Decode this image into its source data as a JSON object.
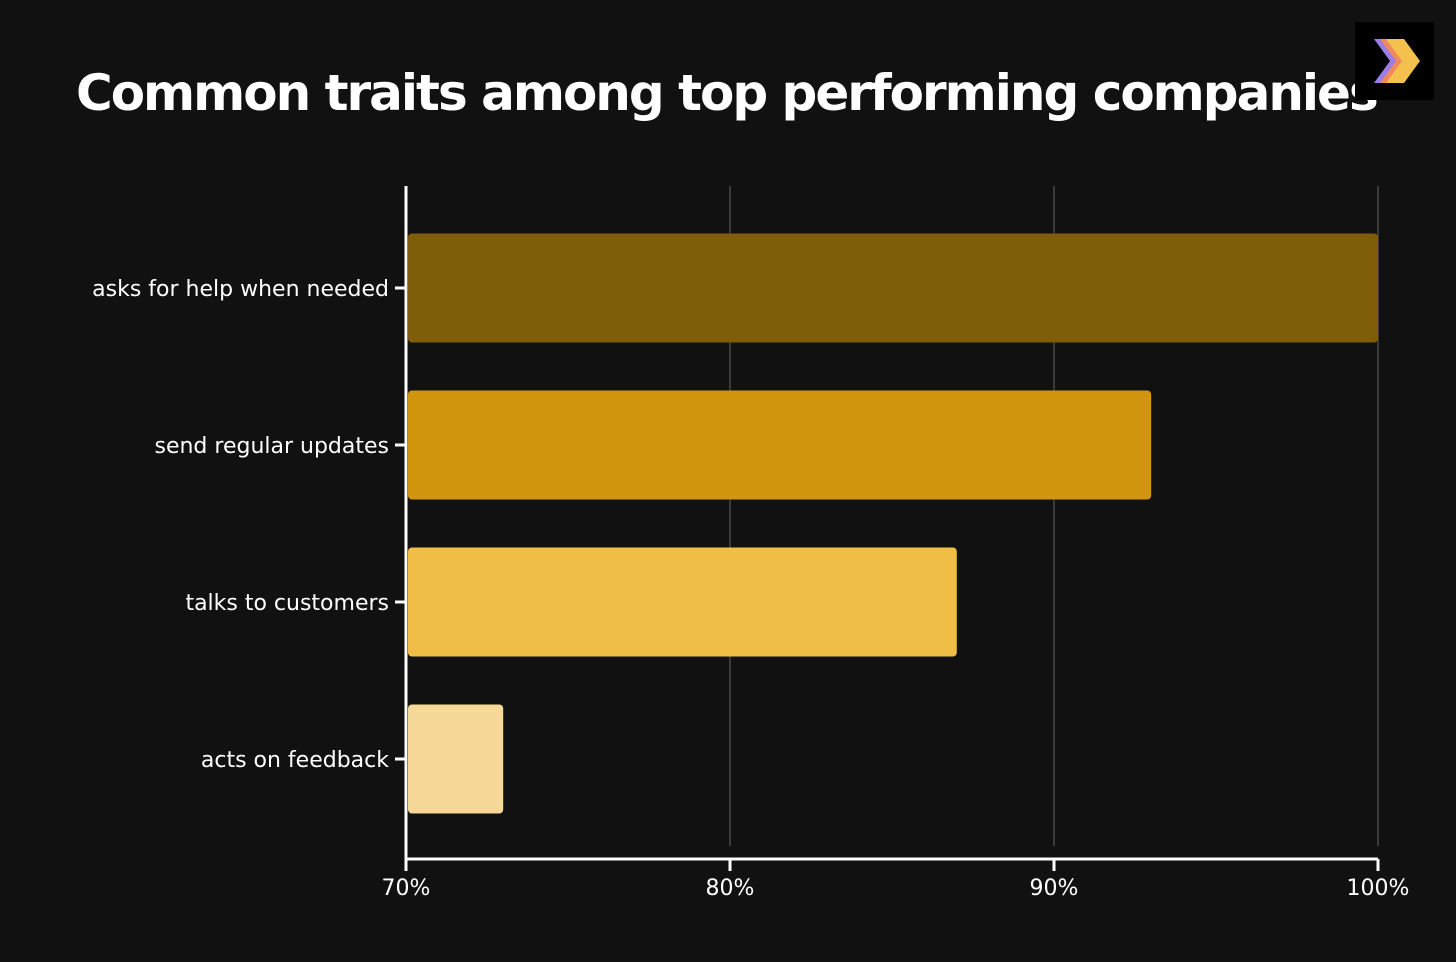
{
  "title": "Common traits among top performing companies",
  "chart_data": {
    "type": "bar",
    "orientation": "horizontal",
    "title": "Common traits among top performing companies",
    "categories": [
      "asks for help when needed",
      "send regular updates",
      "talks to customers",
      "acts on feedback"
    ],
    "values": [
      100,
      93,
      87,
      73
    ],
    "colors": [
      "#7f5c08",
      "#d2960e",
      "#f0be46",
      "#f6d998"
    ],
    "xlim": [
      70,
      100
    ],
    "xticks": [
      70,
      80,
      90,
      100
    ],
    "xtick_labels": [
      "70%",
      "80%",
      "90%",
      "100%"
    ],
    "xlabel": "",
    "ylabel": "",
    "grid": true
  },
  "colors": {
    "background": "#111111",
    "gridline": "#555555",
    "axis": "#ffffff"
  }
}
